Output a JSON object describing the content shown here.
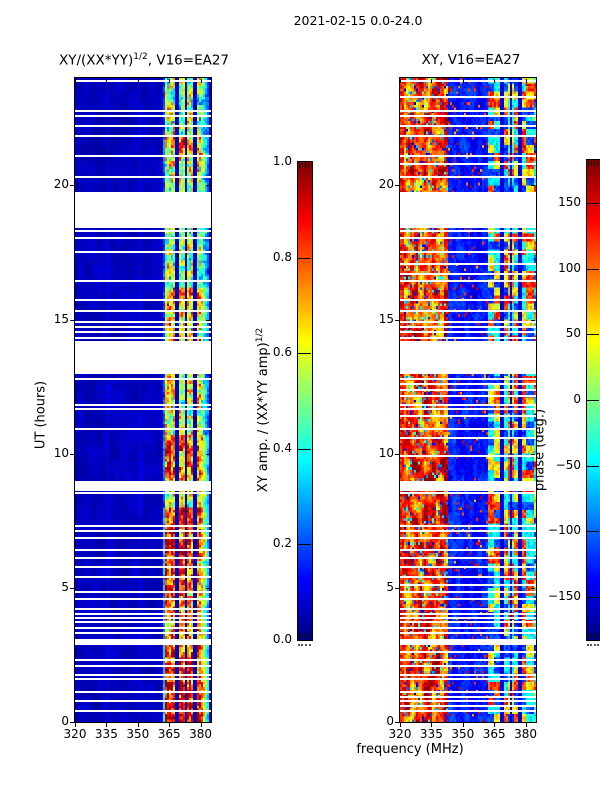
{
  "figure_title": "2021-02-15 0.0-24.0",
  "left_panel": {
    "title_prefix": "XY/(XX*YY)",
    "title_sup": "1/2",
    "title_suffix": ", V16=EA27",
    "ylabel": "UT (hours)"
  },
  "right_panel": {
    "title": "XY, V16=EA27",
    "xlabel": "frequency (MHz)",
    "ylabel_right": "phase (deg.)"
  },
  "left_colorbar": {
    "label_prefix": "XY amp. / (XX*YY amp)",
    "label_sup": "1/2"
  },
  "chart_data": [
    {
      "type": "heatmap",
      "panel": "left",
      "title": "XY/(XX*YY)^(1/2), V16=EA27",
      "xlabel": "frequency (MHz)",
      "ylabel": "UT (hours)",
      "x_range_mhz": [
        320,
        385
      ],
      "y_range_hours": [
        0,
        24
      ],
      "x_ticks": [
        320,
        335,
        350,
        365,
        380
      ],
      "y_ticks": [
        0,
        5,
        10,
        15,
        20
      ],
      "colormap": "jet",
      "colorbar": {
        "label": "XY amp. / (XX*YY amp)^(1/2)",
        "min": 0.0,
        "max": 1.0,
        "ticks": [
          1.0,
          0.8,
          0.6,
          0.4,
          0.2,
          0.0
        ],
        "tick_labels": [
          "1.0",
          "0.8",
          "0.6",
          "0.4",
          "0.2",
          "0.0"
        ]
      },
      "background_amplitude_range": [
        0.02,
        0.1
      ],
      "rfi_band_mhz": [
        362,
        384.3
      ],
      "rfi_band_amplitude_range": [
        0.25,
        0.97
      ],
      "band_separators_mhz": [
        368.7,
        372.8,
        377.4
      ],
      "faint_vertical_lines_mhz": [
        336,
        351
      ],
      "band_intensity_profile": [
        [
          0,
          1.5,
          0.8
        ],
        [
          1.5,
          3,
          0.72
        ],
        [
          3,
          4.5,
          0.62
        ],
        [
          4.5,
          6,
          0.68
        ],
        [
          6,
          8,
          0.74
        ],
        [
          8,
          9,
          0.52
        ],
        [
          9,
          10.7,
          0.66
        ],
        [
          10.7,
          12.2,
          0.44
        ],
        [
          12.2,
          14.2,
          0.48
        ],
        [
          14.2,
          15.2,
          0.55
        ],
        [
          15.2,
          16.2,
          0.62
        ],
        [
          16.2,
          17.3,
          0.42
        ],
        [
          17.3,
          19.7,
          0.44
        ],
        [
          19.7,
          20.8,
          0.48
        ],
        [
          20.8,
          21.8,
          0.56
        ],
        [
          21.8,
          22.8,
          0.44
        ],
        [
          22.8,
          24,
          0.42
        ]
      ],
      "data_gaps_ut": {
        "blocks": [
          [
            18.4,
            19.75
          ],
          [
            12.95,
            14.2
          ],
          [
            8.62,
            8.98
          ],
          [
            2.88,
            3.1
          ]
        ],
        "rows": [
          23.9,
          22.78,
          22.6,
          22.2,
          21.82,
          21.1,
          20.32,
          18.28,
          18.05,
          17.5,
          16.42,
          15.72,
          15.32,
          14.92,
          14.72,
          14.52,
          14.32,
          12.78,
          11.82,
          11.66,
          10.92,
          8.52,
          7.32,
          7.1,
          6.84,
          6.42,
          6.1,
          5.76,
          5.42,
          4.86,
          4.6,
          4.2,
          4.04,
          3.88,
          3.72,
          3.52,
          3.32,
          2.32,
          2.1,
          1.76,
          1.62,
          1.1,
          0.78,
          0.42
        ]
      }
    },
    {
      "type": "heatmap",
      "panel": "right",
      "title": "XY, V16=EA27",
      "xlabel": "frequency (MHz)",
      "ylabel_right": "phase (deg.)",
      "x_range_mhz": [
        320,
        385
      ],
      "y_range_hours": [
        0,
        24
      ],
      "x_ticks": [
        320,
        335,
        350,
        365,
        380
      ],
      "y_ticks": [
        0,
        5,
        10,
        15,
        20
      ],
      "colormap": "jet",
      "colorbar": {
        "label": "phase (deg.)",
        "min": -183,
        "max": 183,
        "ticks": [
          150,
          100,
          50,
          0,
          -50,
          -100,
          -150
        ],
        "tick_labels": [
          "150",
          "100",
          "50",
          "0",
          "−50",
          "−100",
          "−150"
        ]
      },
      "regions": [
        {
          "freq_mhz": [
            320,
            343
          ],
          "character": "hot patches, phase mostly +40 to +180 deg with scattered cold speckles"
        },
        {
          "freq_mhz": [
            343,
            362
          ],
          "character": "cold, phase -120 to -180 deg with sparse hot speckles"
        },
        {
          "freq_mhz": [
            362,
            385
          ],
          "character": "alternating hot/cold horizontal streaks"
        }
      ],
      "band_separators_mhz": [
        368.7,
        372.8,
        377.4
      ],
      "data_gaps_ut": {
        "blocks": [
          [
            18.4,
            19.75
          ],
          [
            12.95,
            14.2
          ],
          [
            8.62,
            8.98
          ],
          [
            2.88,
            3.1
          ]
        ],
        "rows": [
          23.9,
          23.3,
          22.78,
          22.6,
          22.2,
          21.82,
          21.1,
          20.8,
          20.32,
          18.28,
          18.05,
          17.5,
          17.05,
          16.7,
          16.42,
          15.72,
          15.32,
          14.92,
          14.72,
          14.52,
          14.32,
          12.78,
          12.6,
          12.38,
          12.14,
          11.82,
          11.66,
          11.4,
          10.92,
          10.6,
          9.9,
          8.52,
          7.32,
          7.1,
          6.84,
          6.42,
          6.1,
          5.76,
          5.42,
          5.1,
          4.86,
          4.6,
          4.2,
          4.04,
          3.88,
          3.72,
          3.52,
          3.32,
          2.6,
          2.32,
          2.1,
          1.76,
          1.62,
          1.1,
          0.92,
          0.78,
          0.58,
          0.42
        ]
      }
    }
  ]
}
